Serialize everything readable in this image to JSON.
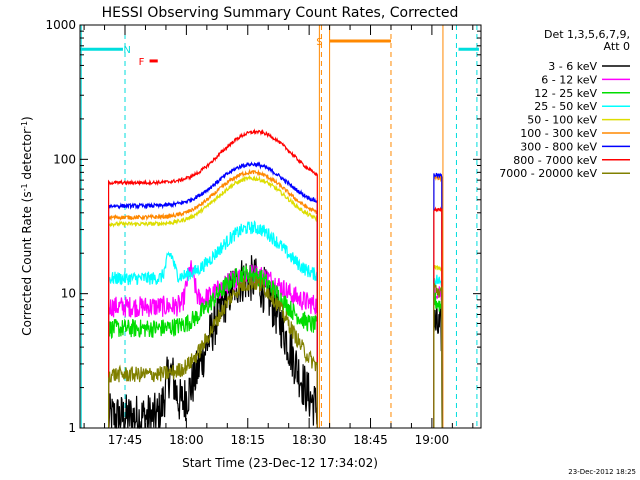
{
  "chart_data": {
    "type": "line",
    "title": "HESSI Observing Summary Count Rates, Corrected",
    "xlabel": "Start Time (23-Dec-12 17:34:02)",
    "ylabel_parts": [
      "Corrected Count Rate (s",
      "-1",
      " detector",
      "-1",
      ")"
    ],
    "y_scale": "log",
    "ylim": [
      1,
      1000
    ],
    "xlim_minutes": [
      34,
      132
    ],
    "x_ticks": [
      {
        "min": 45,
        "label": "17:45"
      },
      {
        "min": 60,
        "label": "18:00"
      },
      {
        "min": 75,
        "label": "18:15"
      },
      {
        "min": 90,
        "label": "18:30"
      },
      {
        "min": 105,
        "label": "18:45"
      },
      {
        "min": 120,
        "label": "19:00"
      }
    ],
    "y_ticks": [
      {
        "value": 1,
        "label": "1"
      },
      {
        "value": 10,
        "label": "10"
      },
      {
        "value": 100,
        "label": "100"
      },
      {
        "value": 1000,
        "label": "1000"
      }
    ],
    "legend_header": [
      "Det 1,3,5,6,7,9,",
      "Att 0"
    ],
    "series": [
      {
        "name": "3 - 6 keV",
        "color": "#000000",
        "base": 1.2,
        "peak": 13,
        "peak_x": 75,
        "width": 8.5,
        "bumps": [
          [
            56,
            2.0,
            1.5
          ]
        ],
        "noise": 0.18,
        "gap_values": [
          6,
          5
        ]
      },
      {
        "name": "6 - 12 keV",
        "color": "#ff00ff",
        "base": 8,
        "peak": 14,
        "peak_x": 76,
        "width": 9,
        "bumps": [
          [
            61,
            1.8,
            1.2
          ]
        ],
        "noise": 0.08,
        "gap_values": [
          11,
          10
        ]
      },
      {
        "name": "12 - 25 keV",
        "color": "#00dd00",
        "base": 5.5,
        "peak": 14,
        "peak_x": 75,
        "width": 9,
        "bumps": [],
        "noise": 0.07,
        "gap_values": [
          9,
          8
        ]
      },
      {
        "name": "25 - 50 keV",
        "color": "#00ffff",
        "base": 13,
        "peak": 31,
        "peak_x": 76,
        "width": 9,
        "bumps": [
          [
            56,
            1.5,
            1.2
          ]
        ],
        "noise": 0.05,
        "gap_values": [
          13,
          12
        ]
      },
      {
        "name": "50 - 100 keV",
        "color": "#dddd00",
        "base": 33,
        "peak": 72,
        "peak_x": 76,
        "width": 10,
        "bumps": [],
        "noise": 0.015,
        "gap_values": [
          16,
          15
        ]
      },
      {
        "name": "100 - 300 keV",
        "color": "#ff8800",
        "base": 37,
        "peak": 80,
        "peak_x": 76,
        "width": 10,
        "bumps": [],
        "noise": 0.015,
        "gap_values": [
          73,
          72
        ]
      },
      {
        "name": "300 - 800 keV",
        "color": "#0000ff",
        "base": 45,
        "peak": 92,
        "peak_x": 76,
        "width": 10,
        "bumps": [],
        "noise": 0.015,
        "gap_values": [
          77,
          75
        ]
      },
      {
        "name": "800 - 7000 keV",
        "color": "#ff0000",
        "base": 67,
        "peak": 160,
        "peak_x": 77,
        "width": 10,
        "bumps": [],
        "noise": 0.012,
        "gap_values": [
          42,
          42
        ]
      },
      {
        "name": "7000 - 20000 keV",
        "color": "#808000",
        "base": 2.5,
        "peak": 12,
        "peak_x": 76,
        "width": 9,
        "bumps": [],
        "noise": 0.06,
        "gap_values": [
          11,
          10
        ]
      }
    ],
    "data_segments": [
      {
        "start": 41,
        "end": 92
      },
      {
        "start": 120.5,
        "end": 122.5
      }
    ],
    "flags": [
      {
        "label": "N",
        "color": "#00dddd",
        "label_x": 45.5,
        "segments": [
          [
            34,
            44.5
          ],
          [
            126.5,
            131.5
          ]
        ],
        "value": 660,
        "markers": [
          45,
          126,
          131
        ]
      },
      {
        "label": "S",
        "color": "#ff8800",
        "label_x": 92.5,
        "segments": [
          [
            95,
            110
          ]
        ],
        "value": 760,
        "markers": [
          93,
          110
        ]
      }
    ],
    "flare_flag": {
      "label": "F",
      "color": "#ff0000",
      "x": [
        51,
        53
      ],
      "value": 540
    },
    "extra_vertical_lines": [
      {
        "x": 34.3,
        "color": "#00dddd",
        "dashed": false
      },
      {
        "x": 92.5,
        "color": "#ff8800",
        "dashed": false
      },
      {
        "x": 95,
        "color": "#ff8800",
        "dashed": false
      },
      {
        "x": 122.7,
        "color": "#ff8800",
        "dashed": false
      }
    ],
    "grid": false
  },
  "footer_timestamp": "23-Dec-2012 18:25"
}
